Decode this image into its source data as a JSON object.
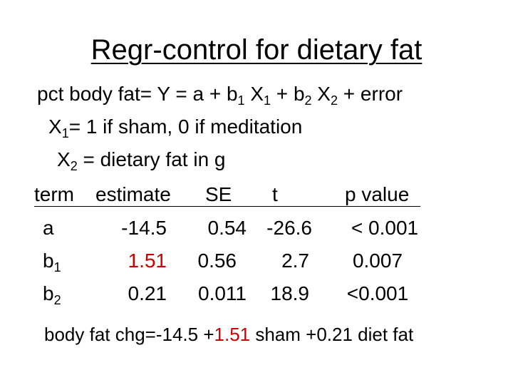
{
  "title": "Regr-control for dietary fat",
  "model": {
    "lhs": "pct body fat= Y = a + b",
    "sub1": "1",
    "mid1": " X",
    "sub2": "1",
    "mid2": " + b",
    "sub3": "2",
    "mid3": " X",
    "sub4": "2",
    "tail": " + error"
  },
  "x1_def": {
    "var": "X",
    "sub": "1",
    "text": "= 1 if sham, 0 if meditation"
  },
  "x2_def": {
    "var": "X",
    "sub": "2",
    "text": " = dietary fat in g"
  },
  "table": {
    "headers": {
      "term": "term",
      "estimate": "estimate",
      "se": "SE",
      "t": "t",
      "p": "p value"
    },
    "rows": [
      {
        "term": "a",
        "term_sub": "",
        "estimate": "-14.5",
        "se": "0.54",
        "t": "-26.6",
        "p": "< 0.001"
      },
      {
        "term": "b",
        "term_sub": "1",
        "estimate": "1.51",
        "se": "0.56",
        "t": "2.7",
        "p": "0.007"
      },
      {
        "term": "b",
        "term_sub": "2",
        "estimate": "0.21",
        "se": "0.011",
        "t": "18.9",
        "p": "<0.001"
      }
    ]
  },
  "summary": {
    "pre": "body fat chg=-14.5 +",
    "highlight": "1.51",
    "post": " sham +0.21 diet fat"
  },
  "colors": {
    "highlight": "#cc0000"
  }
}
